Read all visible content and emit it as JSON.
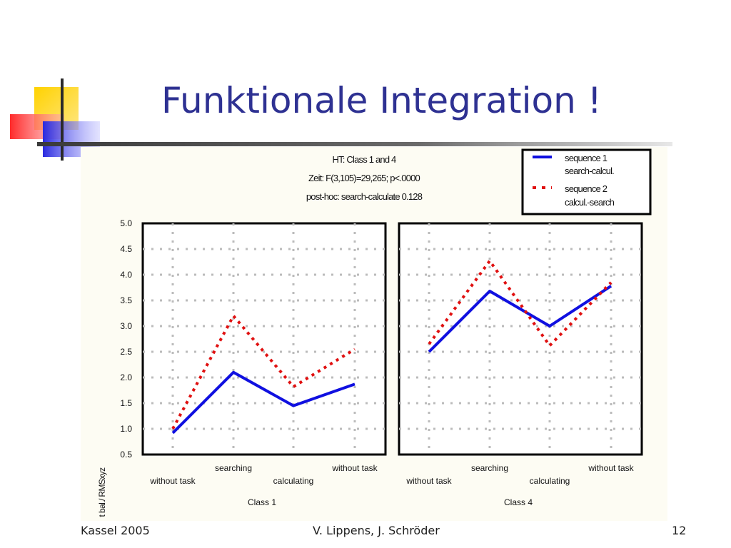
{
  "slide": {
    "title": "Funktionale Integration !",
    "footer_left": "Kassel 2005",
    "footer_center": "V. Lippens, J. Schröder",
    "footer_right": "12"
  },
  "colors": {
    "title": "#2e3192",
    "series1": "#1010e0",
    "series2": "#e01010",
    "panel_bg": "#fdfcf3"
  },
  "chart_data": {
    "type": "line",
    "title_lines": [
      "HT: Class 1 and 4",
      "Zeit: F(3,105)=29,265; p<.0000",
      "post-hoc: search-calculate 0.128"
    ],
    "ylabel": "t bal./ RMSxyz",
    "ylim": [
      0.5,
      5.0
    ],
    "yticks": [
      "5.0",
      "4.5",
      "4.0",
      "3.5",
      "3.0",
      "2.5",
      "2.0",
      "1.5",
      "1.0",
      "0.5"
    ],
    "grid": true,
    "legend_position": "top-right",
    "legend": [
      {
        "label_line1": "sequence 1",
        "label_line2": "search-calcul."
      },
      {
        "label_line1": "sequence 2",
        "label_line2": "calcul.-search"
      }
    ],
    "categories": [
      "without task",
      "searching",
      "calculating",
      "without task"
    ],
    "panels": [
      {
        "name": "Class 1",
        "series": [
          {
            "name": "sequence 1",
            "values": [
              0.92,
              2.1,
              1.45,
              1.87
            ]
          },
          {
            "name": "sequence 2",
            "values": [
              1.0,
              3.2,
              1.82,
              2.55
            ]
          }
        ]
      },
      {
        "name": "Class 4",
        "series": [
          {
            "name": "sequence 1",
            "values": [
              2.5,
              3.68,
              3.0,
              3.78
            ]
          },
          {
            "name": "sequence 2",
            "values": [
              2.65,
              4.27,
              2.62,
              3.85
            ]
          }
        ]
      }
    ]
  }
}
